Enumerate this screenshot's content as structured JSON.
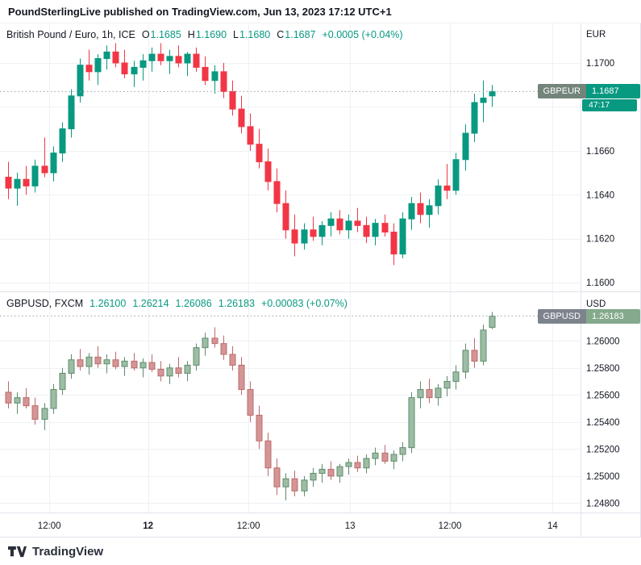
{
  "header": {
    "title": "PoundSterlingLive published on TradingView.com, Jun 13, 2023 17:12 UTC+1"
  },
  "panes": [
    {
      "legend": {
        "title": "British Pound / Euro, 1h, ICE",
        "keys": [
          "O",
          "H",
          "L",
          "C"
        ],
        "values": [
          "1.1685",
          "1.1690",
          "1.1680",
          "1.1687"
        ],
        "change": "+0.0005 (+0.04%)"
      },
      "axis_currency": "EUR",
      "badge": {
        "symbol": "GBPEUR",
        "price": "1.1687",
        "countdown": "47:17"
      }
    },
    {
      "legend": {
        "title": "GBPUSD, FXCM",
        "values": [
          "1.26100",
          "1.26214",
          "1.26086",
          "1.26183"
        ],
        "change": "+0.00083 (+0.07%)"
      },
      "axis_currency": "USD",
      "badge": {
        "symbol": "GBPUSD",
        "price": "1.26183"
      }
    }
  ],
  "time_axis": {
    "ticks": [
      {
        "label": "12:00",
        "pos": 0.085,
        "bold": false
      },
      {
        "label": "12",
        "pos": 0.255,
        "bold": true
      },
      {
        "label": "12:00",
        "pos": 0.428,
        "bold": false
      },
      {
        "label": "13",
        "pos": 0.603,
        "bold": false
      },
      {
        "label": "12:00",
        "pos": 0.775,
        "bold": false
      },
      {
        "label": "14",
        "pos": 0.952,
        "bold": false
      }
    ]
  },
  "footer": {
    "brand": "TradingView"
  },
  "chart_data": [
    {
      "type": "candlestick",
      "symbol": "GBPEUR",
      "title": "British Pound / Euro",
      "exchange": "ICE",
      "timeframe": "1h",
      "y_range": [
        1.1596,
        1.1718
      ],
      "last_price": 1.1687,
      "grid": [
        {
          "price": 1.17,
          "label": "1.1700"
        },
        {
          "price": 1.168,
          "label": "1.1680"
        },
        {
          "price": 1.166,
          "label": "1.1660"
        },
        {
          "price": 1.164,
          "label": "1.1640"
        },
        {
          "price": 1.162,
          "label": "1.1620"
        },
        {
          "price": 1.16,
          "label": "1.1600"
        }
      ],
      "colors": {
        "up": "#089981",
        "up_border": "#089981",
        "down": "#f23645",
        "down_border": "#f23645"
      },
      "x_start_frac": 0.014,
      "x_end_frac": 0.847,
      "candles": [
        [
          1.1648,
          1.1655,
          1.1638,
          1.1643
        ],
        [
          1.1643,
          1.165,
          1.1635,
          1.1647
        ],
        [
          1.1647,
          1.1653,
          1.164,
          1.1644
        ],
        [
          1.1644,
          1.1656,
          1.1641,
          1.1653
        ],
        [
          1.1653,
          1.1666,
          1.1648,
          1.165
        ],
        [
          1.165,
          1.1662,
          1.1646,
          1.1659
        ],
        [
          1.1659,
          1.1673,
          1.1655,
          1.167
        ],
        [
          1.167,
          1.1688,
          1.1666,
          1.1685
        ],
        [
          1.1685,
          1.1702,
          1.1682,
          1.1699
        ],
        [
          1.1699,
          1.1706,
          1.1692,
          1.1696
        ],
        [
          1.1696,
          1.1704,
          1.169,
          1.1702
        ],
        [
          1.1702,
          1.1708,
          1.1697,
          1.1705
        ],
        [
          1.1705,
          1.1709,
          1.1698,
          1.17
        ],
        [
          1.17,
          1.1706,
          1.1693,
          1.1695
        ],
        [
          1.1695,
          1.1701,
          1.1689,
          1.1698
        ],
        [
          1.1698,
          1.1704,
          1.1692,
          1.1701
        ],
        [
          1.1701,
          1.1707,
          1.1696,
          1.1704
        ],
        [
          1.1704,
          1.1709,
          1.1699,
          1.1701
        ],
        [
          1.1701,
          1.1706,
          1.1695,
          1.1703
        ],
        [
          1.1703,
          1.1708,
          1.1698,
          1.17
        ],
        [
          1.17,
          1.1705,
          1.1694,
          1.1704
        ],
        [
          1.1704,
          1.1707,
          1.1696,
          1.1698
        ],
        [
          1.1698,
          1.1703,
          1.169,
          1.1692
        ],
        [
          1.1692,
          1.1699,
          1.1686,
          1.1696
        ],
        [
          1.1696,
          1.17,
          1.1684,
          1.1687
        ],
        [
          1.1687,
          1.1692,
          1.1676,
          1.1679
        ],
        [
          1.1679,
          1.1685,
          1.1668,
          1.1671
        ],
        [
          1.1671,
          1.1677,
          1.166,
          1.1663
        ],
        [
          1.1663,
          1.167,
          1.1652,
          1.1655
        ],
        [
          1.1655,
          1.1661,
          1.1642,
          1.1646
        ],
        [
          1.1646,
          1.1652,
          1.1632,
          1.1636
        ],
        [
          1.1636,
          1.1642,
          1.162,
          1.1624
        ],
        [
          1.1624,
          1.1631,
          1.1612,
          1.1618
        ],
        [
          1.1618,
          1.1627,
          1.1615,
          1.1624
        ],
        [
          1.1624,
          1.163,
          1.1619,
          1.1621
        ],
        [
          1.1621,
          1.1628,
          1.1617,
          1.1626
        ],
        [
          1.1626,
          1.1632,
          1.1621,
          1.1629
        ],
        [
          1.1629,
          1.1633,
          1.1622,
          1.1624
        ],
        [
          1.1624,
          1.1631,
          1.162,
          1.1628
        ],
        [
          1.1628,
          1.1634,
          1.1623,
          1.1626
        ],
        [
          1.1626,
          1.163,
          1.1618,
          1.1621
        ],
        [
          1.1621,
          1.1629,
          1.1617,
          1.1627
        ],
        [
          1.1627,
          1.1631,
          1.1621,
          1.1623
        ],
        [
          1.1623,
          1.1627,
          1.1608,
          1.1613
        ],
        [
          1.1613,
          1.1632,
          1.1611,
          1.1629
        ],
        [
          1.1629,
          1.1639,
          1.1624,
          1.1636
        ],
        [
          1.1636,
          1.1641,
          1.1627,
          1.1631
        ],
        [
          1.1631,
          1.1638,
          1.1625,
          1.1635
        ],
        [
          1.1635,
          1.1647,
          1.1631,
          1.1644
        ],
        [
          1.1644,
          1.1654,
          1.1638,
          1.1642
        ],
        [
          1.1642,
          1.1659,
          1.164,
          1.1656
        ],
        [
          1.1656,
          1.1672,
          1.1651,
          1.1668
        ],
        [
          1.1668,
          1.1686,
          1.1664,
          1.1682
        ],
        [
          1.1682,
          1.1692,
          1.1673,
          1.1684
        ],
        [
          1.1685,
          1.169,
          1.168,
          1.1687
        ]
      ]
    },
    {
      "type": "candlestick",
      "symbol": "GBPUSD",
      "exchange": "FXCM",
      "timeframe": "1h",
      "y_range": [
        1.2473,
        1.2636
      ],
      "last_price": 1.26183,
      "grid": [
        {
          "price": 1.26,
          "label": "1.26000"
        },
        {
          "price": 1.258,
          "label": "1.25800"
        },
        {
          "price": 1.256,
          "label": "1.25600"
        },
        {
          "price": 1.254,
          "label": "1.25400"
        },
        {
          "price": 1.252,
          "label": "1.25200"
        },
        {
          "price": 1.25,
          "label": "1.25000"
        },
        {
          "price": 1.248,
          "label": "1.24800"
        }
      ],
      "colors": {
        "up": "#9cbda4",
        "up_border": "#5f8c6d",
        "down": "#d49595",
        "down_border": "#bb6b6b"
      },
      "x_start_frac": 0.014,
      "x_end_frac": 0.847,
      "candles": [
        [
          1.2562,
          1.257,
          1.255,
          1.2554
        ],
        [
          1.2554,
          1.2562,
          1.2546,
          1.2558
        ],
        [
          1.2558,
          1.2565,
          1.255,
          1.2552
        ],
        [
          1.2552,
          1.2558,
          1.2538,
          1.2542
        ],
        [
          1.2542,
          1.2554,
          1.2534,
          1.255
        ],
        [
          1.255,
          1.2568,
          1.2546,
          1.2564
        ],
        [
          1.2564,
          1.258,
          1.256,
          1.2576
        ],
        [
          1.2576,
          1.259,
          1.2572,
          1.2586
        ],
        [
          1.2586,
          1.2594,
          1.2578,
          1.2581
        ],
        [
          1.2581,
          1.2591,
          1.2575,
          1.2588
        ],
        [
          1.2588,
          1.2596,
          1.258,
          1.2583
        ],
        [
          1.2583,
          1.259,
          1.2576,
          1.2586
        ],
        [
          1.2586,
          1.2592,
          1.2579,
          1.2581
        ],
        [
          1.2581,
          1.2588,
          1.2574,
          1.2585
        ],
        [
          1.2585,
          1.2591,
          1.2578,
          1.258
        ],
        [
          1.258,
          1.2587,
          1.2573,
          1.2584
        ],
        [
          1.2584,
          1.259,
          1.2577,
          1.2579
        ],
        [
          1.2579,
          1.2585,
          1.257,
          1.2574
        ],
        [
          1.2574,
          1.2583,
          1.2568,
          1.258
        ],
        [
          1.258,
          1.2588,
          1.2573,
          1.2576
        ],
        [
          1.2576,
          1.2585,
          1.257,
          1.2582
        ],
        [
          1.2582,
          1.2598,
          1.2578,
          1.2595
        ],
        [
          1.2595,
          1.2606,
          1.2589,
          1.2602
        ],
        [
          1.2602,
          1.261,
          1.2595,
          1.2598
        ],
        [
          1.2598,
          1.2604,
          1.2586,
          1.259
        ],
        [
          1.259,
          1.2596,
          1.2578,
          1.2582
        ],
        [
          1.2582,
          1.2588,
          1.256,
          1.2564
        ],
        [
          1.2564,
          1.257,
          1.254,
          1.2545
        ],
        [
          1.2545,
          1.2552,
          1.252,
          1.2526
        ],
        [
          1.2526,
          1.2532,
          1.25,
          1.2506
        ],
        [
          1.2506,
          1.2513,
          1.2486,
          1.2492
        ],
        [
          1.2492,
          1.2502,
          1.2482,
          1.2498
        ],
        [
          1.2498,
          1.2504,
          1.2485,
          1.2489
        ],
        [
          1.2489,
          1.25,
          1.2485,
          1.2497
        ],
        [
          1.2497,
          1.2506,
          1.2492,
          1.2502
        ],
        [
          1.2502,
          1.2509,
          1.2495,
          1.2505
        ],
        [
          1.2505,
          1.2511,
          1.2497,
          1.25
        ],
        [
          1.25,
          1.2509,
          1.2495,
          1.2507
        ],
        [
          1.2507,
          1.2513,
          1.2501,
          1.251
        ],
        [
          1.251,
          1.2515,
          1.2503,
          1.2506
        ],
        [
          1.2506,
          1.2516,
          1.2502,
          1.2513
        ],
        [
          1.2513,
          1.2521,
          1.2508,
          1.2517
        ],
        [
          1.2517,
          1.2523,
          1.2509,
          1.2511
        ],
        [
          1.2511,
          1.2519,
          1.2505,
          1.2516
        ],
        [
          1.2516,
          1.2525,
          1.2511,
          1.2521
        ],
        [
          1.2521,
          1.2562,
          1.2517,
          1.2558
        ],
        [
          1.2558,
          1.257,
          1.255,
          1.2564
        ],
        [
          1.2564,
          1.2572,
          1.2554,
          1.2558
        ],
        [
          1.2558,
          1.2568,
          1.2552,
          1.2565
        ],
        [
          1.2565,
          1.2574,
          1.2559,
          1.257
        ],
        [
          1.257,
          1.2582,
          1.2564,
          1.2577
        ],
        [
          1.2577,
          1.2598,
          1.2572,
          1.2593
        ],
        [
          1.2593,
          1.2602,
          1.258,
          1.2585
        ],
        [
          1.2585,
          1.2612,
          1.2582,
          1.2608
        ],
        [
          1.261,
          1.26214,
          1.26086,
          1.26183
        ]
      ]
    }
  ]
}
